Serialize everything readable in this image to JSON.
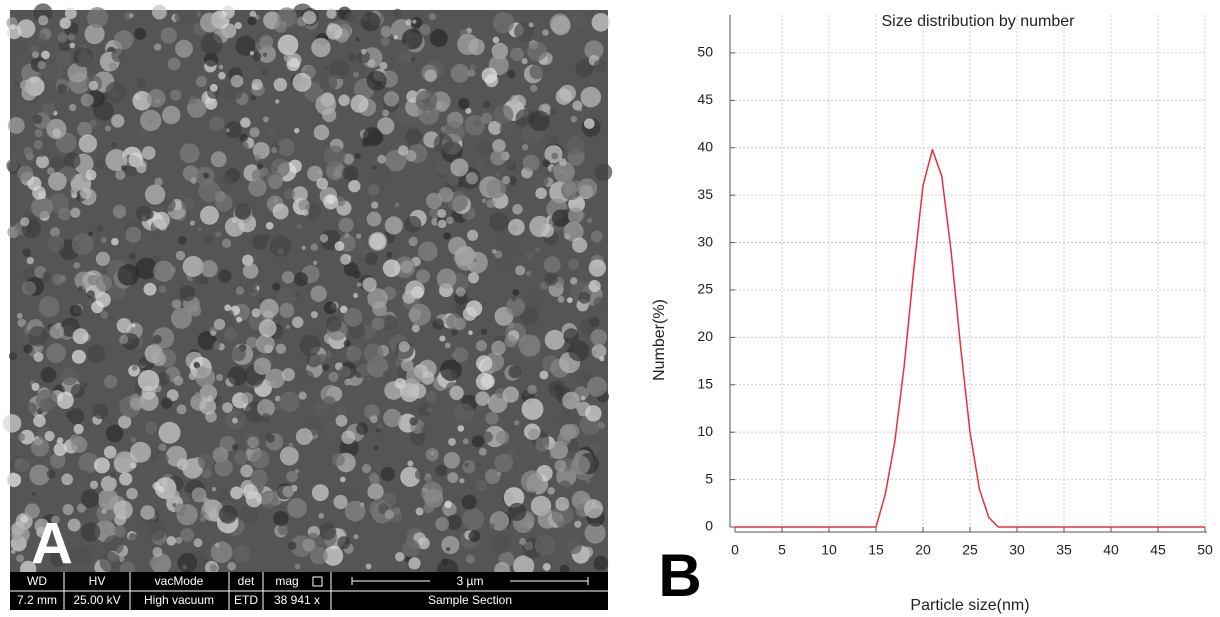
{
  "panel_labels": [
    "A",
    "B"
  ],
  "sem_info": {
    "headers": [
      "WD",
      "HV",
      "vacMode",
      "det",
      "mag"
    ],
    "values": [
      "7.2 mm",
      "25.00 kV",
      "High vacuum",
      "ETD",
      "38 941 x",
      "Sample Section"
    ],
    "scale_bar": "3 µm"
  },
  "chart_data": {
    "type": "line",
    "title": "Size distribution by number",
    "x_label": "Particle size(nm)",
    "y_label": "Number(%)",
    "x": [
      0,
      15,
      16,
      17,
      18,
      19,
      20,
      21,
      22,
      23,
      24,
      25,
      26,
      27,
      28,
      50
    ],
    "values": [
      0,
      0,
      3.5,
      9,
      17,
      27,
      36,
      39.8,
      37,
      29,
      19,
      10,
      4,
      1,
      0,
      0
    ],
    "color": "#e8303a",
    "xlim": [
      0,
      50
    ],
    "xticks": [
      0,
      5,
      10,
      15,
      20,
      25,
      30,
      35,
      40,
      45,
      50
    ],
    "ylim": [
      0,
      54
    ],
    "yticks": [
      0,
      5,
      10,
      15,
      20,
      25,
      30,
      35,
      40,
      45,
      50
    ],
    "grid": true
  }
}
